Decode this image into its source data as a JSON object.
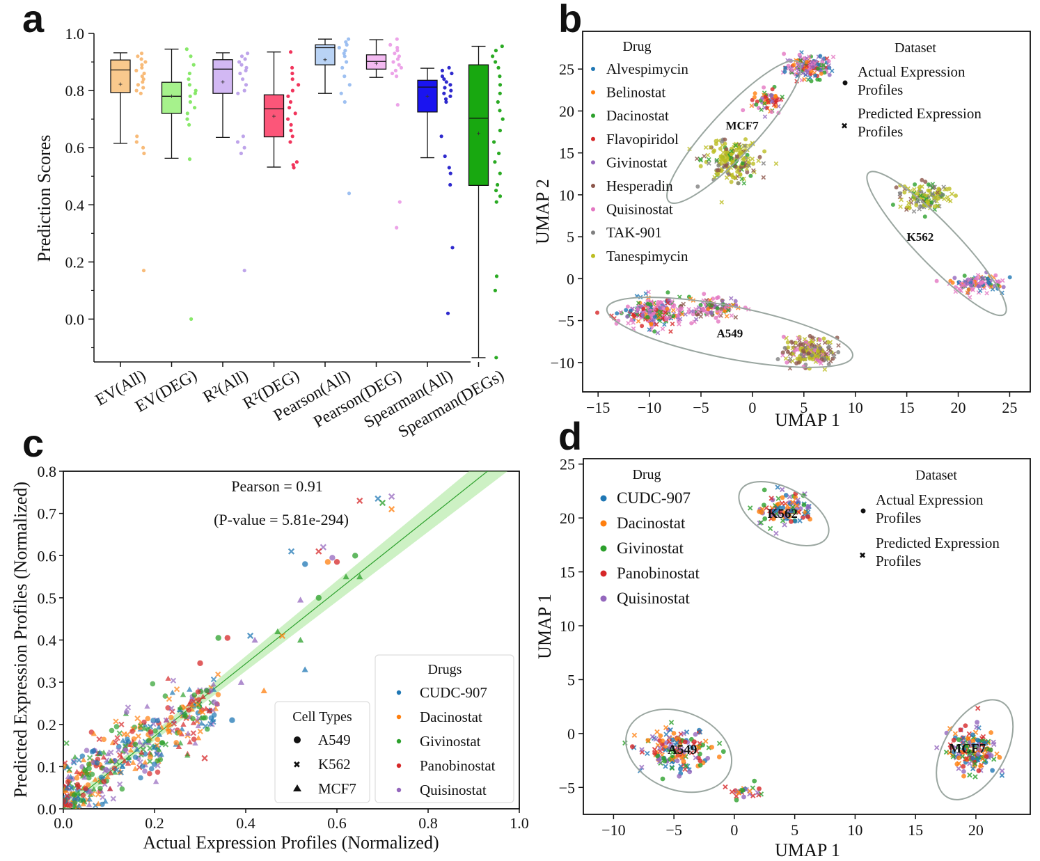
{
  "panels": {
    "a": "a",
    "b": "b",
    "c": "c",
    "d": "d"
  },
  "chart_data": [
    {
      "id": "a",
      "type": "box",
      "ylabel": "Prediction Scores",
      "ylim": [
        -0.15,
        1.0
      ],
      "yticks": [
        "0.0",
        "0.2",
        "0.4",
        "0.6",
        "0.8",
        "1.0"
      ],
      "yticks_values": [
        0.0,
        0.2,
        0.4,
        0.6,
        0.8,
        1.0
      ],
      "categories": [
        "EV(All)",
        "EV(DEG)",
        "R²(All)",
        "R²(DEG)",
        "Pearson(All)",
        "Pearson(DEG)",
        "Spearman(All)",
        "Spearman(DEGs)"
      ],
      "colors": [
        "#f9c98d",
        "#a6f28c",
        "#d2b8f3",
        "#fc5679",
        "#b9d3f5",
        "#f3baf1",
        "#1a14f0",
        "#18a810"
      ],
      "dot_colors": [
        "#f7b46a",
        "#7be65a",
        "#b79ae8",
        "#f01f4a",
        "#93b9ef",
        "#ea99e6",
        "#1712c8",
        "#13a10b"
      ],
      "boxes": [
        {
          "whislo": 0.615,
          "q1": 0.793,
          "med": 0.872,
          "mean": 0.822,
          "q3": 0.907,
          "whishi": 0.932
        },
        {
          "whislo": 0.563,
          "q1": 0.72,
          "med": 0.78,
          "mean": 0.78,
          "q3": 0.829,
          "whishi": 0.945
        },
        {
          "whislo": 0.636,
          "q1": 0.79,
          "med": 0.875,
          "mean": 0.83,
          "q3": 0.908,
          "whishi": 0.932
        },
        {
          "whislo": 0.532,
          "q1": 0.638,
          "med": 0.736,
          "mean": 0.71,
          "q3": 0.785,
          "whishi": 0.935
        },
        {
          "whislo": 0.79,
          "q1": 0.89,
          "med": 0.95,
          "mean": 0.908,
          "q3": 0.96,
          "whishi": 0.98
        },
        {
          "whislo": 0.846,
          "q1": 0.875,
          "med": 0.902,
          "mean": 0.895,
          "q3": 0.925,
          "whishi": 0.978
        },
        {
          "whislo": 0.565,
          "q1": 0.725,
          "med": 0.812,
          "mean": 0.78,
          "q3": 0.836,
          "whishi": 0.878
        },
        {
          "whislo": -0.135,
          "q1": 0.468,
          "med": 0.703,
          "mean": 0.65,
          "q3": 0.89,
          "whishi": 0.955
        }
      ],
      "points": [
        [
          0.93,
          0.92,
          0.91,
          0.9,
          0.89,
          0.88,
          0.87,
          0.86,
          0.85,
          0.84,
          0.83,
          0.82,
          0.81,
          0.8,
          0.79,
          0.64,
          0.62,
          0.6,
          0.58,
          0.17
        ],
        [
          0.945,
          0.92,
          0.89,
          0.86,
          0.84,
          0.82,
          0.8,
          0.79,
          0.78,
          0.76,
          0.74,
          0.72,
          0.7,
          0.68,
          0.56,
          0.0
        ],
        [
          0.93,
          0.92,
          0.91,
          0.9,
          0.89,
          0.88,
          0.87,
          0.86,
          0.84,
          0.82,
          0.8,
          0.79,
          0.64,
          0.62,
          0.6,
          0.58,
          0.17
        ],
        [
          0.935,
          0.88,
          0.86,
          0.84,
          0.82,
          0.8,
          0.78,
          0.76,
          0.74,
          0.72,
          0.7,
          0.68,
          0.66,
          0.64,
          0.62,
          0.55,
          0.54,
          0.53
        ],
        [
          0.98,
          0.97,
          0.96,
          0.95,
          0.94,
          0.93,
          0.92,
          0.9,
          0.88,
          0.85,
          0.82,
          0.79,
          0.76,
          0.44
        ],
        [
          0.98,
          0.96,
          0.95,
          0.94,
          0.93,
          0.92,
          0.91,
          0.9,
          0.89,
          0.88,
          0.87,
          0.86,
          0.85,
          0.75,
          0.41,
          0.32
        ],
        [
          0.88,
          0.87,
          0.86,
          0.85,
          0.84,
          0.83,
          0.82,
          0.81,
          0.8,
          0.79,
          0.78,
          0.77,
          0.76,
          0.64,
          0.57,
          0.53,
          0.51,
          0.47,
          0.25,
          0.02
        ],
        [
          0.955,
          0.94,
          0.92,
          0.9,
          0.88,
          0.85,
          0.82,
          0.79,
          0.76,
          0.73,
          0.7,
          0.66,
          0.62,
          0.58,
          0.55,
          0.51,
          0.47,
          0.45,
          0.43,
          0.41,
          0.15,
          0.1,
          -0.135
        ]
      ]
    },
    {
      "id": "b",
      "type": "scatter",
      "xlabel": "UMAP 1",
      "ylabel": "UMAP 2",
      "xlim": [
        -16.5,
        27
      ],
      "ylim": [
        -13.5,
        29.5
      ],
      "xticks": [
        "−15",
        "−10",
        "−5",
        "0",
        "5",
        "10",
        "15",
        "20",
        "25"
      ],
      "xticks_values": [
        -15,
        -10,
        -5,
        0,
        5,
        10,
        15,
        20,
        25
      ],
      "yticks": [
        "−10",
        "−5",
        "0",
        "5",
        "10",
        "15",
        "20",
        "25"
      ],
      "yticks_values": [
        -10,
        -5,
        0,
        5,
        10,
        15,
        20,
        25
      ],
      "legend_drug_title": "Drug",
      "drugs": [
        {
          "name": "Alvespimycin",
          "color": "#1f77b4"
        },
        {
          "name": "Belinostat",
          "color": "#ff7f0e"
        },
        {
          "name": "Dacinostat",
          "color": "#2ca02c"
        },
        {
          "name": "Flavopiridol",
          "color": "#d62728"
        },
        {
          "name": "Givinostat",
          "color": "#9467bd"
        },
        {
          "name": "Hesperadin",
          "color": "#8c564b"
        },
        {
          "name": "Quisinostat",
          "color": "#e377c2"
        },
        {
          "name": "TAK-901",
          "color": "#7f7f7f"
        },
        {
          "name": "Tanespimycin",
          "color": "#bcbd22"
        }
      ],
      "legend_dataset_title": "Dataset",
      "datasets": [
        {
          "line1": "Actual Expression",
          "line2": "Profiles"
        },
        {
          "line1": "Predicted Expression",
          "line2": "Profiles"
        }
      ],
      "clusters": [
        {
          "label": "MCF7",
          "at": [
            -1,
            18.3
          ],
          "ellipse": {
            "cx": -1.8,
            "cy": 17.5,
            "rx": 10.2,
            "ry": 2.4,
            "angle": 47
          }
        },
        {
          "label": "K562",
          "at": [
            16.3,
            5
          ],
          "ellipse": {
            "cx": 17.9,
            "cy": 4.2,
            "rx": 10.5,
            "ry": 2.2,
            "angle": -46
          }
        },
        {
          "label": "A549",
          "at": [
            -2.2,
            -6.5
          ],
          "ellipse": {
            "cx": -2.2,
            "cy": -6.4,
            "rx": 13.4,
            "ry": 2.8,
            "angle": -11
          }
        }
      ],
      "blobs": [
        {
          "cx": 5.5,
          "cy": 25.2,
          "sx": 2.1,
          "sy": 1.3,
          "n": 150,
          "palette": [
            6,
            6,
            4,
            2,
            3,
            4,
            0,
            1
          ]
        },
        {
          "cx": 1.5,
          "cy": 21.2,
          "sx": 1.3,
          "sy": 1.3,
          "n": 60,
          "palette": [
            6,
            4,
            2,
            3,
            1
          ]
        },
        {
          "cx": -2.2,
          "cy": 14.2,
          "sx": 2.5,
          "sy": 2.3,
          "n": 190,
          "palette": [
            8,
            8,
            8,
            5,
            7,
            2,
            8
          ]
        },
        {
          "cx": 16.8,
          "cy": 9.8,
          "sx": 2.3,
          "sy": 1.5,
          "n": 130,
          "palette": [
            8,
            8,
            8,
            7,
            5,
            2
          ]
        },
        {
          "cx": 21.7,
          "cy": -0.5,
          "sx": 2.3,
          "sy": 1.0,
          "n": 120,
          "palette": [
            6,
            6,
            1,
            4,
            2,
            0
          ]
        },
        {
          "cx": -9.5,
          "cy": -4.2,
          "sx": 2.7,
          "sy": 1.6,
          "n": 230,
          "palette": [
            6,
            6,
            6,
            4,
            2,
            1,
            3,
            0
          ]
        },
        {
          "cx": -4,
          "cy": -3.5,
          "sx": 2.3,
          "sy": 1.1,
          "n": 110,
          "palette": [
            6,
            6,
            4,
            2,
            1,
            5
          ]
        },
        {
          "cx": 5.7,
          "cy": -8.7,
          "sx": 2.3,
          "sy": 1.5,
          "n": 190,
          "palette": [
            8,
            8,
            5,
            5,
            7,
            6
          ]
        }
      ]
    },
    {
      "id": "c",
      "type": "scatter",
      "xlabel": "Actual Expression Profiles (Normalized)",
      "ylabel": "Predicted Expression Profiles (Normalized)",
      "xlim": [
        0.0,
        1.0
      ],
      "ylim": [
        0.0,
        0.8
      ],
      "xticks": [
        "0.0",
        "0.2",
        "0.4",
        "0.6",
        "0.8",
        "1.0"
      ],
      "xticks_values": [
        0.0,
        0.2,
        0.4,
        0.6,
        0.8,
        1.0
      ],
      "yticks": [
        "0.0",
        "0.1",
        "0.2",
        "0.3",
        "0.4",
        "0.5",
        "0.6",
        "0.7",
        "0.8"
      ],
      "yticks_values": [
        0.0,
        0.1,
        0.2,
        0.3,
        0.4,
        0.5,
        0.6,
        0.7,
        0.8
      ],
      "annotation1": "Pearson = 0.91",
      "annotation2": "(P-value = 5.81e-294)",
      "fit": {
        "slope": 0.86,
        "intercept": 0.0,
        "band": 0.022,
        "color": "#2ca02c"
      },
      "legend_cell_title": "Cell Types",
      "cell_types": [
        "A549",
        "K562",
        "MCF7"
      ],
      "legend_drug_title": "Drugs",
      "drugs": [
        {
          "name": "CUDC-907",
          "color": "#1f77b4"
        },
        {
          "name": "Dacinostat",
          "color": "#ff7f0e"
        },
        {
          "name": "Givinostat",
          "color": "#2ca02c"
        },
        {
          "name": "Panobinostat",
          "color": "#d62728"
        },
        {
          "name": "Quisinostat",
          "color": "#9467bd"
        }
      ],
      "highlights": [
        [
          0.69,
          0.735,
          1,
          0
        ],
        [
          0.72,
          0.74,
          1,
          4
        ],
        [
          0.7,
          0.725,
          1,
          2
        ],
        [
          0.65,
          0.73,
          1,
          3
        ],
        [
          0.72,
          0.71,
          1,
          1
        ],
        [
          0.57,
          0.62,
          1,
          4
        ],
        [
          0.56,
          0.61,
          1,
          3
        ],
        [
          0.5,
          0.61,
          1,
          0
        ],
        [
          0.59,
          0.595,
          0,
          4
        ],
        [
          0.6,
          0.585,
          0,
          3
        ],
        [
          0.58,
          0.585,
          0,
          1
        ],
        [
          0.53,
          0.58,
          0,
          0
        ],
        [
          0.64,
          0.6,
          0,
          2
        ],
        [
          0.62,
          0.55,
          2,
          2
        ],
        [
          0.65,
          0.55,
          2,
          2
        ],
        [
          0.56,
          0.5,
          0,
          2
        ],
        [
          0.52,
          0.495,
          2,
          4
        ],
        [
          0.34,
          0.405,
          0,
          2
        ],
        [
          0.36,
          0.405,
          0,
          3
        ],
        [
          0.48,
          0.41,
          1,
          1
        ],
        [
          0.41,
          0.41,
          1,
          0
        ],
        [
          0.47,
          0.42,
          2,
          2
        ],
        [
          0.42,
          0.4,
          2,
          4
        ],
        [
          0.52,
          0.4,
          2,
          2
        ],
        [
          0.53,
          0.33,
          2,
          0
        ],
        [
          0.3,
          0.345,
          0,
          3
        ],
        [
          0.44,
          0.28,
          2,
          1
        ],
        [
          0.39,
          0.3,
          2,
          4
        ],
        [
          0.37,
          0.21,
          0,
          0
        ],
        [
          0.31,
          0.12,
          1,
          3
        ]
      ],
      "cloud": {
        "n": 420,
        "xmin": 0.0,
        "xmax": 0.34,
        "noise": 0.045
      }
    },
    {
      "id": "d",
      "type": "scatter",
      "xlabel": "UMAP 1",
      "ylabel": "UMAP 1",
      "xlim": [
        -12.5,
        24.5
      ],
      "ylim": [
        -7.5,
        25.5
      ],
      "xticks": [
        "−10",
        "−5",
        "0",
        "5",
        "10",
        "15",
        "20"
      ],
      "xticks_values": [
        -10,
        -5,
        0,
        5,
        10,
        15,
        20
      ],
      "yticks": [
        "−5",
        "0",
        "5",
        "10",
        "15",
        "20",
        "25"
      ],
      "yticks_values": [
        -5,
        0,
        5,
        10,
        15,
        20,
        25
      ],
      "legend_drug_title": "Drug",
      "drugs": [
        {
          "name": "CUDC-907",
          "color": "#1f77b4"
        },
        {
          "name": "Dacinostat",
          "color": "#ff7f0e"
        },
        {
          "name": "Givinostat",
          "color": "#2ca02c"
        },
        {
          "name": "Panobinostat",
          "color": "#d62728"
        },
        {
          "name": "Quisinostat",
          "color": "#9467bd"
        }
      ],
      "legend_dataset_title": "Dataset",
      "datasets": [
        {
          "line1": "Actual Expression",
          "line2": "Profiles"
        },
        {
          "line1": "Predicted Expression",
          "line2": "Profiles"
        }
      ],
      "clusters": [
        {
          "label": "K562",
          "at": [
            4,
            20.4
          ],
          "ellipse": {
            "cx": 4.1,
            "cy": 20.4,
            "rx": 4.3,
            "ry": 2.2,
            "angle": -28
          }
        },
        {
          "label": "A549",
          "at": [
            -4.3,
            -1.5
          ],
          "ellipse": {
            "cx": -4.6,
            "cy": -1.6,
            "rx": 4.8,
            "ry": 3.4,
            "angle": -22
          }
        },
        {
          "label": "MCF7",
          "at": [
            19.3,
            -1.4
          ],
          "ellipse": {
            "cx": 19.9,
            "cy": -1.5,
            "rx": 4.8,
            "ry": 2.7,
            "angle": 60
          }
        }
      ],
      "blobs": [
        {
          "cx": 4.2,
          "cy": 20.8,
          "sx": 2.2,
          "sy": 1.5,
          "n": 110
        },
        {
          "cx": -4.8,
          "cy": -1.6,
          "sx": 2.6,
          "sy": 1.7,
          "n": 150
        },
        {
          "cx": 0.8,
          "cy": -5.5,
          "sx": 1.3,
          "sy": 0.6,
          "n": 25
        },
        {
          "cx": 19.8,
          "cy": -1.6,
          "sx": 1.8,
          "sy": 2.0,
          "n": 150
        }
      ]
    }
  ]
}
